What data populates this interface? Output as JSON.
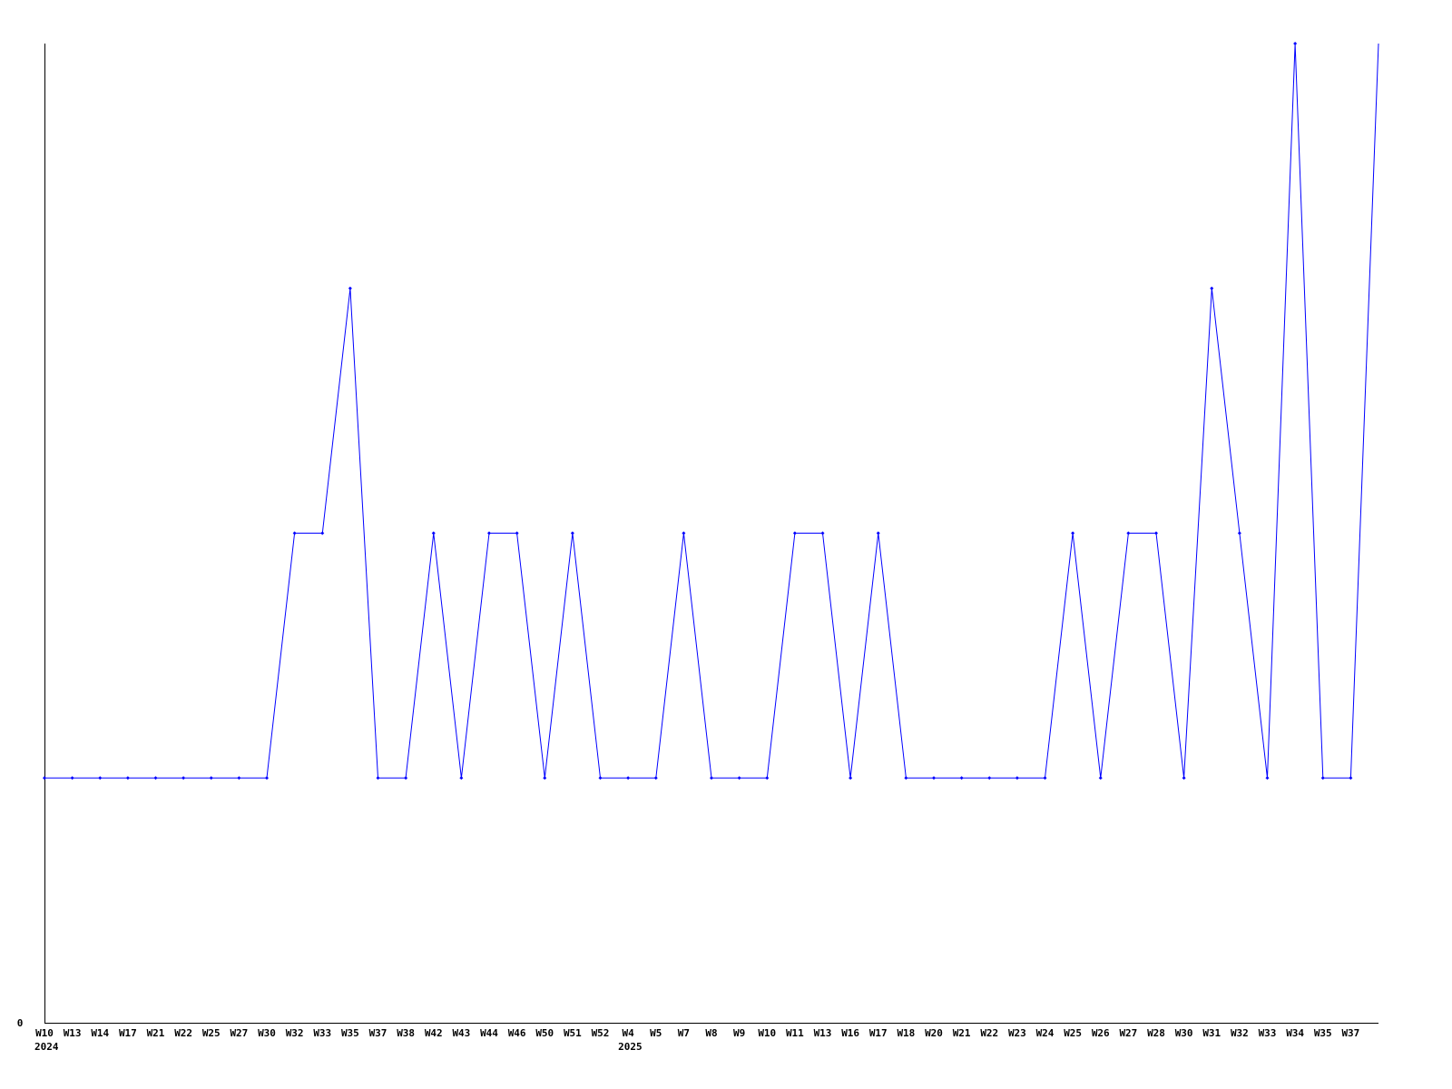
{
  "chart_data": {
    "type": "line",
    "title": "",
    "xlabel": "",
    "ylabel": "",
    "ylim": [
      0,
      4
    ],
    "y_tick_labels": [
      "0"
    ],
    "grid": false,
    "series_color": "#0000ff",
    "x": [
      "W10",
      "W13",
      "W14",
      "W17",
      "W21",
      "W22",
      "W25",
      "W27",
      "W30",
      "W32",
      "W33",
      "W35",
      "W37",
      "W38",
      "W42",
      "W43",
      "W44",
      "W46",
      "W50",
      "W51",
      "W52",
      "W4",
      "W5",
      "W7",
      "W8",
      "W9",
      "W10",
      "W11",
      "W13",
      "W16",
      "W17",
      "W18",
      "W20",
      "W21",
      "W22",
      "W23",
      "W24",
      "W25",
      "W26",
      "W27",
      "W28",
      "W30",
      "W31",
      "W32",
      "W33",
      "W34",
      "W35",
      "W37",
      ""
    ],
    "year_labels": [
      {
        "label": "2024",
        "at_index": 0
      },
      {
        "label": "2025",
        "at_index": 21
      }
    ],
    "series": [
      {
        "values": [
          1,
          1,
          1,
          1,
          1,
          1,
          1,
          1,
          1,
          2,
          2,
          3,
          1,
          1,
          2,
          1,
          2,
          2,
          1,
          2,
          1,
          1,
          1,
          2,
          1,
          1,
          1,
          2,
          2,
          1,
          2,
          1,
          1,
          1,
          1,
          1,
          1,
          2,
          1,
          2,
          2,
          1,
          3,
          2,
          1,
          4,
          1,
          1,
          4
        ]
      }
    ]
  }
}
